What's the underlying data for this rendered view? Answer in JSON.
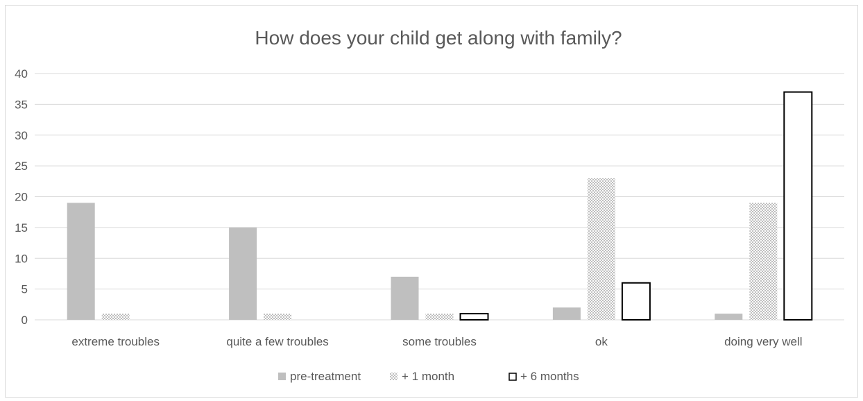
{
  "chart_data": {
    "type": "bar",
    "title": "How does your child get along with family?",
    "xlabel": "",
    "ylabel": "",
    "ylim": [
      0,
      40
    ],
    "yticks": [
      "0",
      "5",
      "10",
      "15",
      "20",
      "25",
      "30",
      "35",
      "40"
    ],
    "grid": true,
    "legend_position": "bottom",
    "categories": [
      "extreme troubles",
      "quite a few troubles",
      "some troubles",
      "ok",
      "doing very well"
    ],
    "series": [
      {
        "name": "pre-treatment",
        "values": [
          19,
          15,
          7,
          2,
          1
        ],
        "style": "solid",
        "color": "#bfbfbf"
      },
      {
        "name": "+ 1 month",
        "values": [
          1,
          1,
          1,
          23,
          19
        ],
        "style": "crosshatch",
        "color": "#bfbfbf"
      },
      {
        "name": "+ 6 months",
        "values": [
          0,
          0,
          1,
          6,
          37
        ],
        "style": "outline",
        "color": "#000000"
      }
    ]
  }
}
